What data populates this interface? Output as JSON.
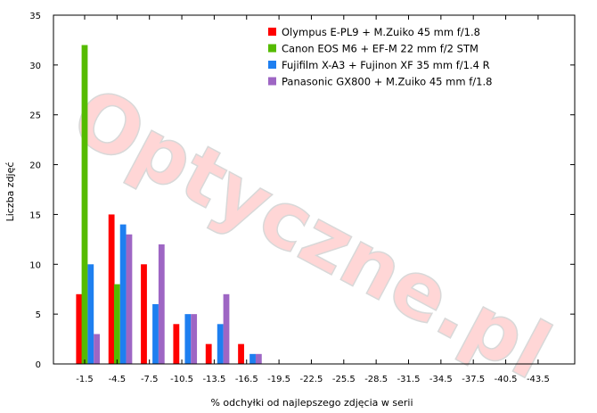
{
  "chart_data": {
    "type": "bar",
    "xlabel": "% odchyłki od najlepszego zdjęcia w serii",
    "ylabel": "Liczba zdjęć",
    "ylim": [
      0,
      35
    ],
    "yticks": [
      0,
      5,
      10,
      15,
      20,
      25,
      30,
      35
    ],
    "grid": false,
    "legend_position": "top-right",
    "watermark": "Optyczne.pl",
    "categories": [
      "-1.5",
      "-4.5",
      "-7.5",
      "-10.5",
      "-13.5",
      "-16.5",
      "-19.5",
      "-22.5",
      "-25.5",
      "-28.5",
      "-31.5",
      "-34.5",
      "-37.5",
      "-40.5",
      "-43.5"
    ],
    "series": [
      {
        "name": "Olympus E-PL9 + M.Zuiko 45 mm f/1.8",
        "color": "#ff0000",
        "values": [
          7,
          15,
          10,
          4,
          2,
          2,
          0,
          0,
          0,
          0,
          0,
          0,
          0,
          0,
          0
        ]
      },
      {
        "name": "Canon EOS M6 + EF-M 22 mm f/2 STM",
        "color": "#55bb00",
        "values": [
          32,
          8,
          0,
          0,
          0,
          0,
          0,
          0,
          0,
          0,
          0,
          0,
          0,
          0,
          0
        ]
      },
      {
        "name": "Fujifilm X-A3 + Fujinon XF 35 mm f/1.4 R",
        "color": "#1e7ff0",
        "values": [
          10,
          14,
          6,
          5,
          4,
          1,
          0,
          0,
          0,
          0,
          0,
          0,
          0,
          0,
          0
        ]
      },
      {
        "name": "Panasonic GX800 + M.Zuiko 45 mm f/1.8",
        "color": "#9e66c4",
        "values": [
          3,
          13,
          12,
          5,
          7,
          1,
          0,
          0,
          0,
          0,
          0,
          0,
          0,
          0,
          0
        ]
      }
    ]
  }
}
